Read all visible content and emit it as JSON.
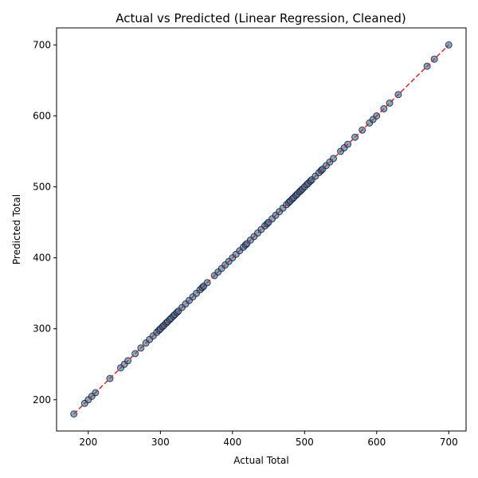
{
  "chart_data": {
    "type": "scatter",
    "title": "Actual vs Predicted (Linear Regression, Cleaned)",
    "xlabel": "Actual Total",
    "ylabel": "Predicted Total",
    "xlim": [
      156,
      724
    ],
    "ylim": [
      156,
      724
    ],
    "xticks": [
      200,
      300,
      400,
      500,
      600,
      700
    ],
    "yticks": [
      200,
      300,
      400,
      500,
      600,
      700
    ],
    "grid": false,
    "reference_line": {
      "x": [
        180,
        700
      ],
      "y": [
        180,
        700
      ],
      "color": "#d62728",
      "style": "dashed"
    },
    "marker_fill": "#1f77b4",
    "marker_edge": "#000000",
    "points": [
      180,
      195,
      200,
      205,
      210,
      230,
      245,
      250,
      255,
      265,
      273,
      280,
      285,
      290,
      295,
      298,
      300,
      303,
      305,
      308,
      310,
      313,
      315,
      318,
      320,
      323,
      325,
      330,
      335,
      340,
      345,
      350,
      355,
      358,
      360,
      365,
      375,
      380,
      385,
      390,
      395,
      400,
      405,
      410,
      415,
      418,
      420,
      425,
      430,
      435,
      440,
      445,
      448,
      450,
      455,
      460,
      465,
      470,
      475,
      478,
      480,
      483,
      485,
      488,
      490,
      493,
      495,
      497,
      500,
      503,
      505,
      508,
      510,
      515,
      520,
      523,
      525,
      530,
      535,
      540,
      550,
      555,
      560,
      570,
      580,
      590,
      595,
      600,
      610,
      618,
      630,
      670,
      680,
      700
    ]
  }
}
